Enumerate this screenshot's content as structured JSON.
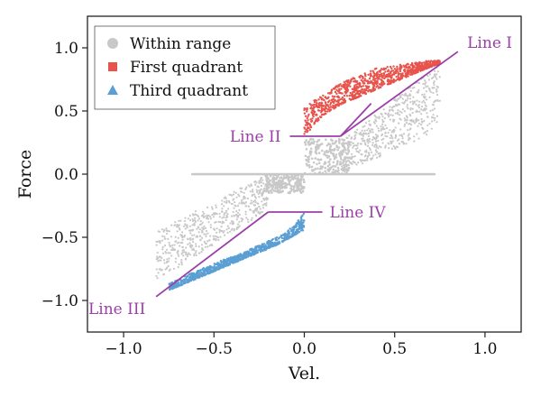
{
  "chart_data": {
    "type": "scatter",
    "xlabel": "Vel.",
    "ylabel": "Force",
    "xlim": [
      -1.2,
      1.2
    ],
    "ylim": [
      -1.25,
      1.25
    ],
    "xticks": [
      -1.0,
      -0.5,
      0.0,
      0.5,
      1.0
    ],
    "yticks": [
      -1.0,
      -0.5,
      0.0,
      0.5,
      1.0
    ],
    "xtick_labels": [
      "−1.0",
      "−0.5",
      "0.0",
      "0.5",
      "1.0"
    ],
    "ytick_labels": [
      "−1.0",
      "−0.5",
      "0.0",
      "0.5",
      "1.0"
    ],
    "grid": false,
    "legend_position": "top-left",
    "colors": {
      "within": "#c8c8c8",
      "first": "#e8534c",
      "third": "#5b9fd4",
      "lines": "#9b3fa8"
    },
    "series": [
      {
        "name": "Within range",
        "marker": "circle",
        "color": "#c8c8c8",
        "regions": [
          {
            "kind": "hline",
            "x": [
              -0.62,
              0.0
            ],
            "y": 0.0
          },
          {
            "kind": "hline",
            "x": [
              0.0,
              0.72
            ],
            "y": 0.0
          },
          {
            "kind": "band",
            "x": [
              -0.82,
              -0.2
            ],
            "ylow": [
              -0.85,
              -0.28
            ],
            "yhigh": [
              -0.45,
              0.0
            ]
          },
          {
            "kind": "band",
            "x": [
              0.2,
              0.75
            ],
            "ylow": [
              0.0,
              0.35
            ],
            "yhigh": [
              0.25,
              0.88
            ]
          },
          {
            "kind": "cluster",
            "x": [
              -0.22,
              0.0
            ],
            "y": [
              -0.15,
              0.0
            ]
          },
          {
            "kind": "cluster",
            "x": [
              0.0,
              0.25
            ],
            "y": [
              0.0,
              0.28
            ]
          }
        ]
      },
      {
        "name": "First quadrant",
        "marker": "square",
        "color": "#e8534c",
        "x": [
          0.0,
          0.1,
          0.2,
          0.3,
          0.4,
          0.5,
          0.6,
          0.7,
          0.75
        ],
        "y_low": [
          0.3,
          0.46,
          0.55,
          0.61,
          0.67,
          0.73,
          0.79,
          0.85,
          0.87
        ],
        "y_high": [
          0.55,
          0.62,
          0.72,
          0.78,
          0.84,
          0.86,
          0.88,
          0.9,
          0.9
        ]
      },
      {
        "name": "Third quadrant",
        "marker": "triangle",
        "color": "#5b9fd4",
        "x": [
          -0.75,
          -0.65,
          -0.55,
          -0.45,
          -0.35,
          -0.25,
          -0.15,
          -0.05,
          0.0
        ],
        "y_low": [
          -0.92,
          -0.86,
          -0.8,
          -0.74,
          -0.68,
          -0.62,
          -0.56,
          -0.48,
          -0.44
        ],
        "y_high": [
          -0.87,
          -0.8,
          -0.74,
          -0.68,
          -0.63,
          -0.56,
          -0.5,
          -0.4,
          -0.3
        ]
      }
    ],
    "annotations": [
      {
        "label": "Line I",
        "points": [
          [
            0.2,
            0.3
          ],
          [
            0.85,
            0.97
          ]
        ],
        "anchor": "end"
      },
      {
        "label": "Line II",
        "points": [
          [
            -0.08,
            0.3
          ],
          [
            0.2,
            0.3
          ]
        ],
        "anchor": "start"
      },
      {
        "label": "Line III",
        "points": [
          [
            -0.82,
            -0.97
          ],
          [
            -0.2,
            -0.3
          ]
        ],
        "anchor": "start"
      },
      {
        "label": "Line IV",
        "points": [
          [
            -0.2,
            -0.3
          ],
          [
            0.1,
            -0.3
          ]
        ],
        "anchor": "end"
      }
    ]
  }
}
